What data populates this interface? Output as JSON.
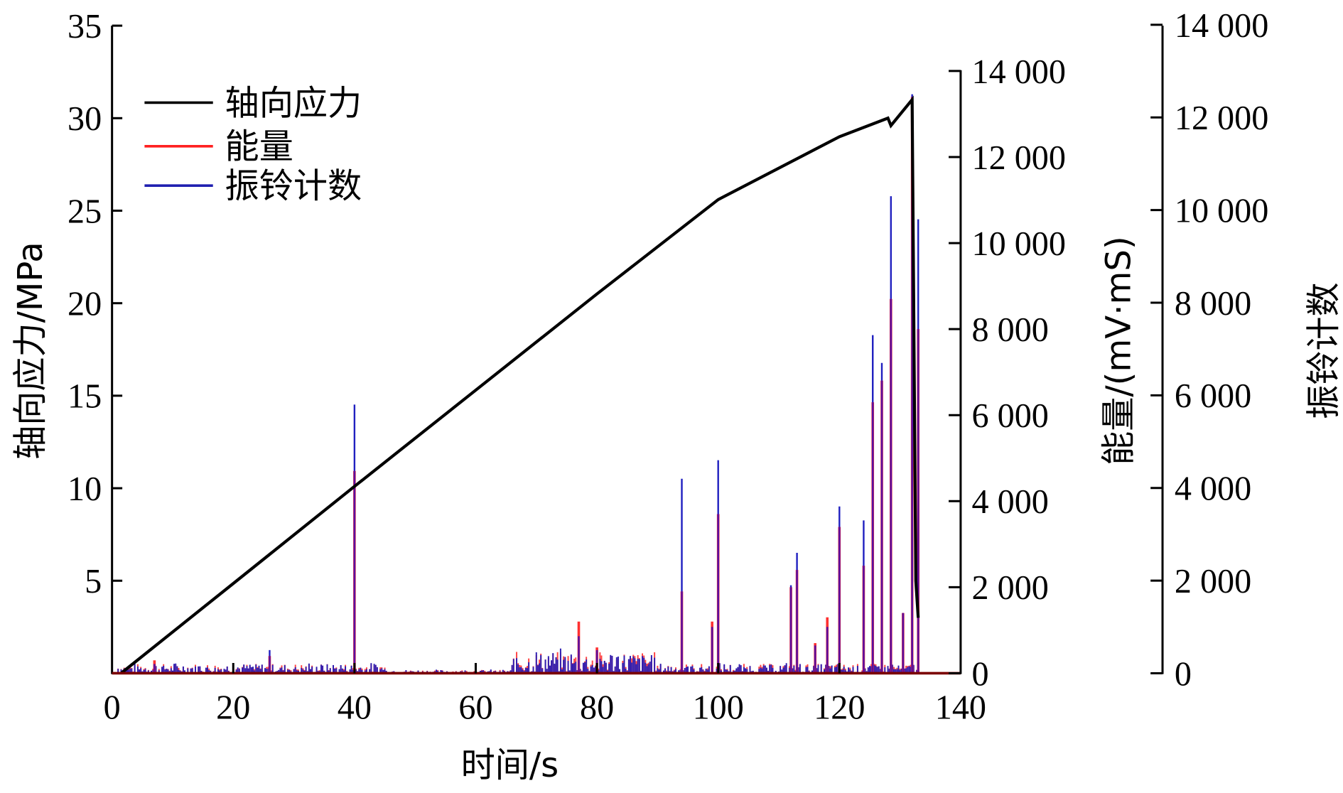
{
  "chart_data": {
    "type": "line",
    "title": "",
    "xlabel": "时间/s",
    "ylabel_left": "轴向应力/MPa",
    "ylabel_right1": "能量/(mV·mS)",
    "ylabel_right2": "振铃计数",
    "xlim": [
      0,
      140
    ],
    "ylim_left": [
      0,
      35
    ],
    "ylim_right1": [
      0,
      14000
    ],
    "ylim_right2": [
      0,
      14000
    ],
    "x_ticks": [
      "0",
      "20",
      "40",
      "60",
      "80",
      "100",
      "120",
      "140"
    ],
    "y_left_ticks": [
      "5",
      "10",
      "15",
      "20",
      "25",
      "30",
      "35"
    ],
    "y_right1_ticks": [
      "0",
      "2 000",
      "4 000",
      "6 000",
      "8 000",
      "10 000",
      "12 000",
      "14 000"
    ],
    "y_right2_ticks": [
      "0",
      "2 000",
      "4 000",
      "6 000",
      "8 000",
      "10 000",
      "12 000",
      "14 000"
    ],
    "grid": false,
    "legend_position": "upper-left",
    "legend": [
      "轴向应力",
      "能量",
      "振铃计数"
    ],
    "colors": {
      "stress": "#000000",
      "energy": "#ff2020",
      "count": "#2020b0"
    },
    "series": [
      {
        "name": "轴向应力",
        "axis": "left",
        "x": [
          1.5,
          20,
          40,
          60,
          80,
          100,
          120,
          128,
          128.5,
          132,
          132.6,
          133
        ],
        "values": [
          0,
          4.85,
          10.1,
          15.3,
          20.5,
          25.6,
          29.0,
          30.0,
          29.6,
          31.0,
          5.0,
          3.0
        ]
      },
      {
        "name": "能量",
        "axis": "right1",
        "x": [
          7,
          26,
          40,
          77,
          80,
          94,
          99,
          100,
          112,
          113,
          116,
          118,
          120,
          124,
          125.5,
          127,
          128.5,
          130.5,
          132,
          133
        ],
        "values": [
          300,
          400,
          4700,
          1200,
          600,
          1900,
          1200,
          3700,
          2000,
          2400,
          700,
          1300,
          3400,
          2500,
          6300,
          6800,
          8700,
          1400,
          13400,
          8000
        ]
      },
      {
        "name": "振铃计数",
        "axis": "right2",
        "x": [
          7,
          26,
          40,
          77,
          80,
          94,
          99,
          100,
          112,
          113,
          116,
          118,
          120,
          124,
          125.5,
          127,
          128.5,
          130.5,
          132,
          133
        ],
        "values": [
          200,
          500,
          5800,
          800,
          500,
          4200,
          1000,
          4600,
          1900,
          2600,
          600,
          1000,
          3600,
          3300,
          7300,
          6700,
          10300,
          1300,
          12500,
          9800
        ]
      }
    ]
  }
}
